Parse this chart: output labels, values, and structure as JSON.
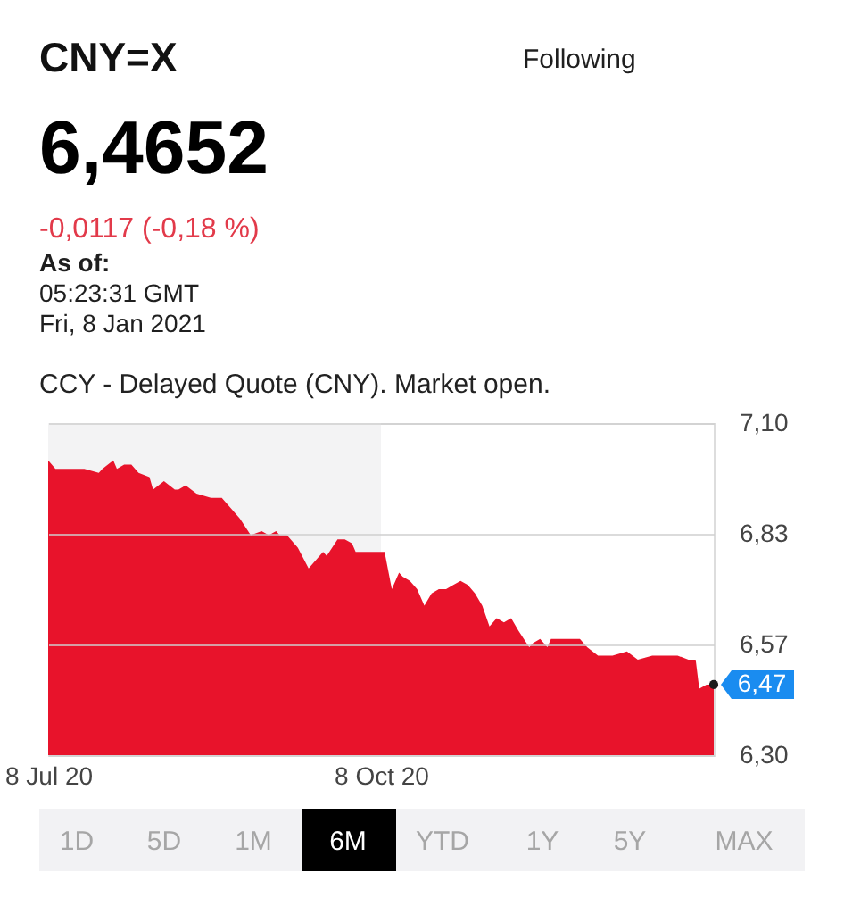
{
  "chart_data": {
    "type": "area",
    "title": "CNY=X",
    "subtitle": "CCY - Delayed Quote (CNY). Market open.",
    "x": [
      "2020-07-08",
      "2020-07-10",
      "2020-07-14",
      "2020-07-18",
      "2020-07-22",
      "2020-07-23",
      "2020-07-26",
      "2020-07-27",
      "2020-07-29",
      "2020-07-31",
      "2020-08-02",
      "2020-08-05",
      "2020-08-06",
      "2020-08-09",
      "2020-08-12",
      "2020-08-13",
      "2020-08-15",
      "2020-08-18",
      "2020-08-22",
      "2020-08-25",
      "2020-08-27",
      "2020-08-30",
      "2020-09-02",
      "2020-09-05",
      "2020-09-07",
      "2020-09-09",
      "2020-09-10",
      "2020-09-12",
      "2020-09-15",
      "2020-09-18",
      "2020-09-20",
      "2020-09-22",
      "2020-09-23",
      "2020-09-26",
      "2020-09-28",
      "2020-09-30",
      "2020-10-01",
      "2020-10-09",
      "2020-10-11",
      "2020-10-13",
      "2020-10-14",
      "2020-10-16",
      "2020-10-18",
      "2020-10-20",
      "2020-10-22",
      "2020-10-24",
      "2020-10-26",
      "2020-10-28",
      "2020-10-30",
      "2020-11-01",
      "2020-11-03",
      "2020-11-05",
      "2020-11-07",
      "2020-11-09",
      "2020-11-11",
      "2020-11-13",
      "2020-11-15",
      "2020-11-18",
      "2020-11-19",
      "2020-11-21",
      "2020-11-23",
      "2020-11-24",
      "2020-11-28",
      "2020-12-02",
      "2020-12-04",
      "2020-12-07",
      "2020-12-11",
      "2020-12-15",
      "2020-12-18",
      "2020-12-22",
      "2020-12-25",
      "2020-12-29",
      "2021-01-01",
      "2021-01-03",
      "2021-01-04",
      "2021-01-06",
      "2021-01-08"
    ],
    "series": [
      {
        "color": "#e8132b",
        "values": [
          7.01,
          6.99,
          6.99,
          6.99,
          6.98,
          6.99,
          7.01,
          6.99,
          7.0,
          7.0,
          6.98,
          6.97,
          6.94,
          6.96,
          6.94,
          6.94,
          6.95,
          6.93,
          6.92,
          6.92,
          6.9,
          6.87,
          6.83,
          6.84,
          6.83,
          6.84,
          6.83,
          6.83,
          6.8,
          6.75,
          6.77,
          6.79,
          6.78,
          6.82,
          6.82,
          6.81,
          6.79,
          6.79,
          6.7,
          6.74,
          6.73,
          6.72,
          6.7,
          6.66,
          6.69,
          6.7,
          6.7,
          6.71,
          6.72,
          6.71,
          6.69,
          6.66,
          6.61,
          6.63,
          6.62,
          6.63,
          6.6,
          6.56,
          6.57,
          6.58,
          6.56,
          6.58,
          6.58,
          6.58,
          6.56,
          6.54,
          6.54,
          6.55,
          6.53,
          6.54,
          6.54,
          6.54,
          6.53,
          6.53,
          6.46,
          6.47,
          6.47
        ]
      }
    ],
    "xlim": [
      "2020-07-08",
      "2021-01-08"
    ],
    "xticks": [
      {
        "value": "2020-07-08",
        "label": "8 Jul 20"
      },
      {
        "value": "2020-10-08",
        "label": "8 Oct 20"
      }
    ],
    "ylim": [
      6.3,
      7.1
    ],
    "yticks": [
      {
        "value": 7.1,
        "label": "7,10"
      },
      {
        "value": 6.8333,
        "label": "6,83"
      },
      {
        "value": 6.5667,
        "label": "6,57"
      },
      {
        "value": 6.3,
        "label": "6,30"
      }
    ],
    "grid": "y",
    "bands": [
      {
        "axis": "x",
        "from": "2020-07-08",
        "to": "2020-10-08",
        "color": "#f3f3f4"
      }
    ],
    "annotations": [
      "Following",
      "6,4652",
      "-0,0117 (-0,18 %)",
      "As of:",
      "05:23:31 GMT",
      "Fri, 8 Jan 2021",
      {
        "text": "6,47",
        "x": "2021-01-08",
        "y": 6.47
      },
      "1D",
      "5D",
      "1M",
      "6M",
      "YTD",
      "1Y",
      "5Y",
      "MAX"
    ]
  }
}
